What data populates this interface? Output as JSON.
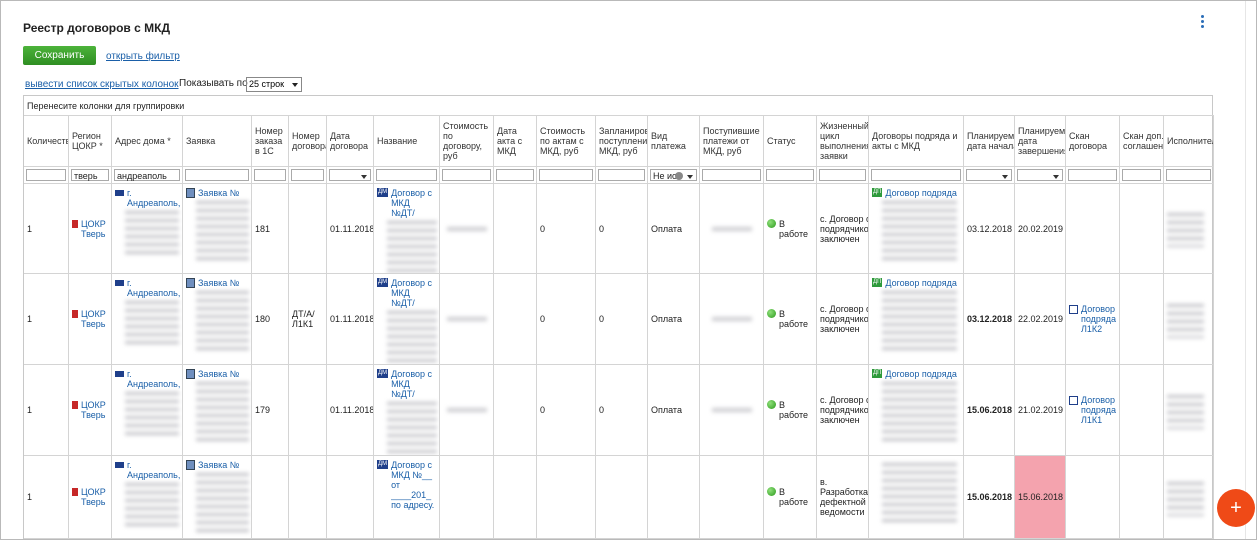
{
  "header": {
    "title": "Реестр договоров с МКД",
    "save_button": "Сохранить",
    "filter_link": "открыть фильтр",
    "hidden_columns_link": "вывести список скрытых колонок",
    "page_size_label": "Показывать по",
    "page_size": "25 строк"
  },
  "table": {
    "group_hint": "Перенесите колонки для группировки",
    "headers": [
      "Количество",
      "Регион ЦОКР *",
      "Адрес дома *",
      "Заявка",
      "Номер заказа в 1С",
      "Номер договора",
      "Дата договора",
      "Название",
      "Стоимость по договору, руб",
      "Дата акта с МКД",
      "Стоимость по актам с МКД, руб",
      "Запланирова поступления МКД, руб",
      "Вид платежа",
      "Поступившие платежи от МКД, руб",
      "Статус",
      "Жизненный цикл выполнения заявки",
      "Договоры подряда и акты с МКД",
      "Планируемая дата начала",
      "Планируемая дата завершения",
      "Скан договора",
      "Скан доп. соглашения",
      "Исполнитель"
    ],
    "filters": [
      null,
      "тверь",
      "андреаполь",
      null,
      null,
      null,
      null,
      null,
      null,
      null,
      null,
      null,
      "Не ис",
      null,
      null,
      null,
      null,
      null,
      null,
      null,
      null,
      null
    ],
    "badges": {
      "name": "ДМ",
      "contract": "ДП"
    },
    "rows": [
      [
        1,
        "ЦОКР Тверь",
        "г. Андреаполь,",
        "Заявка №",
        181,
        null,
        "01.11.2018",
        "Договор с МКД №ДТ/",
        null,
        null,
        0,
        0,
        "Оплата",
        null,
        "В работе",
        "с. Договор с подрядчиком заключен",
        "Договор подряда",
        "03.12.2018",
        "20.02.2019",
        null,
        null,
        null
      ],
      [
        1,
        "ЦОКР Тверь",
        "г. Андреаполь,",
        "Заявка №",
        180,
        "ДТ/А/Л1К1",
        "01.11.2018",
        "Договор с МКД №ДТ/",
        null,
        null,
        0,
        0,
        "Оплата",
        null,
        "В работе",
        "с. Договор с подрядчиком заключен",
        "Договор подряда",
        "03.12.2018",
        "22.02.2019",
        "Договор подряда Л1К2",
        null,
        null
      ],
      [
        1,
        "ЦОКР Тверь",
        "г. Андреаполь,",
        "Заявка №",
        179,
        null,
        "01.11.2018",
        "Договор с МКД №ДТ/",
        null,
        null,
        0,
        0,
        "Оплата",
        null,
        "В работе",
        "с. Договор с подрядчиком заключен",
        "Договор подряда",
        "15.06.2018",
        "21.02.2019",
        "Договор подряда Л1К1",
        null,
        null
      ],
      [
        1,
        "ЦОКР Тверь",
        "г. Андреаполь,",
        "Заявка №",
        null,
        null,
        null,
        "Договор с МКД №__ от ____201_ по адресу.",
        null,
        null,
        null,
        null,
        null,
        null,
        "В работе",
        "в. Разработка дефектной ведомости",
        null,
        "15.06.2018",
        "15.06.2018",
        null,
        null,
        null
      ]
    ]
  },
  "fab_label": "+"
}
